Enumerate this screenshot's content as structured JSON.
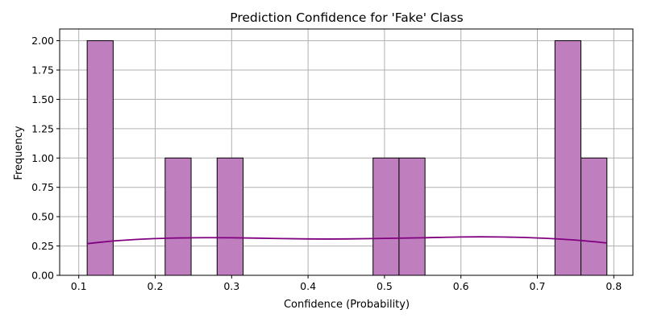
{
  "chart_data": {
    "type": "bar",
    "title": "Prediction Confidence for 'Fake' Class",
    "xlabel": "Confidence (Probability)",
    "ylabel": "Frequency",
    "xlim": [
      0.075,
      0.825
    ],
    "ylim": [
      0,
      2.1
    ],
    "xticks": [
      0.1,
      0.2,
      0.3,
      0.4,
      0.5,
      0.6,
      0.7,
      0.8
    ],
    "xtick_labels": [
      "0.1",
      "0.2",
      "0.3",
      "0.4",
      "0.5",
      "0.6",
      "0.7",
      "0.8"
    ],
    "yticks": [
      0,
      0.25,
      0.5,
      0.75,
      1.0,
      1.25,
      1.5,
      1.75,
      2.0
    ],
    "ytick_labels": [
      "0.00",
      "0.25",
      "0.50",
      "0.75",
      "1.00",
      "1.25",
      "1.50",
      "1.75",
      "2.00"
    ],
    "grid": true,
    "bar_color": "#bf7fbf",
    "bar_edge_color": "#000000",
    "kde_color": "#800080",
    "bins": [
      {
        "x0": 0.111,
        "x1": 0.145,
        "count": 2
      },
      {
        "x0": 0.213,
        "x1": 0.247,
        "count": 1
      },
      {
        "x0": 0.281,
        "x1": 0.315,
        "count": 1
      },
      {
        "x0": 0.485,
        "x1": 0.519,
        "count": 1
      },
      {
        "x0": 0.519,
        "x1": 0.553,
        "count": 1
      },
      {
        "x0": 0.723,
        "x1": 0.757,
        "count": 2
      },
      {
        "x0": 0.757,
        "x1": 0.791,
        "count": 1
      }
    ],
    "kde": {
      "x": [
        0.111,
        0.15,
        0.2,
        0.25,
        0.3,
        0.35,
        0.4,
        0.45,
        0.5,
        0.55,
        0.6,
        0.65,
        0.7,
        0.75,
        0.791
      ],
      "y": [
        0.27,
        0.295,
        0.313,
        0.32,
        0.32,
        0.315,
        0.31,
        0.31,
        0.315,
        0.32,
        0.327,
        0.327,
        0.318,
        0.3,
        0.276
      ]
    }
  }
}
